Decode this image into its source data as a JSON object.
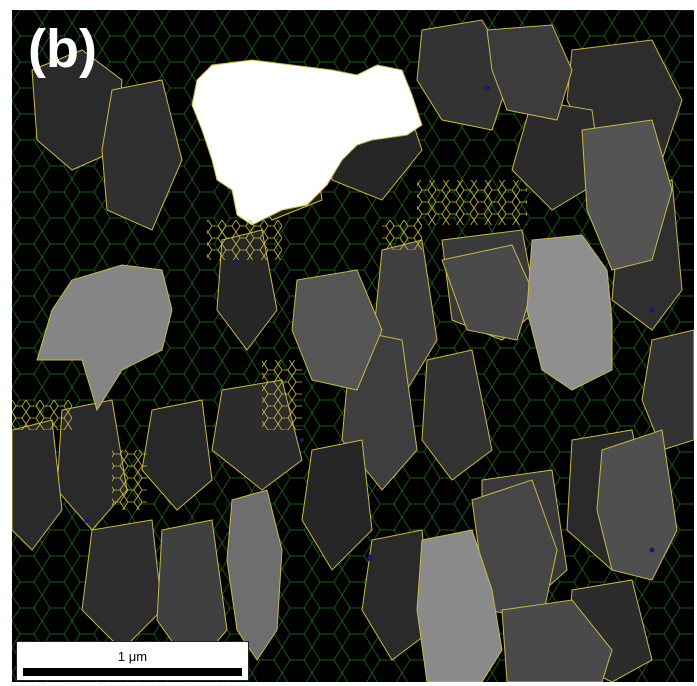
{
  "figure": {
    "panel_label": "(b)",
    "scale_bar_label": "1 μm"
  },
  "colors": {
    "background": "#000000",
    "boundary_green": "#2fae2f",
    "boundary_yellow": "#c9b84a",
    "grain_white": "#ffffff",
    "grain_gray_light": "#8c8c8c",
    "grain_gray_mid": "#4d4d4d",
    "grain_gray_dark": "#2a2a2a"
  }
}
